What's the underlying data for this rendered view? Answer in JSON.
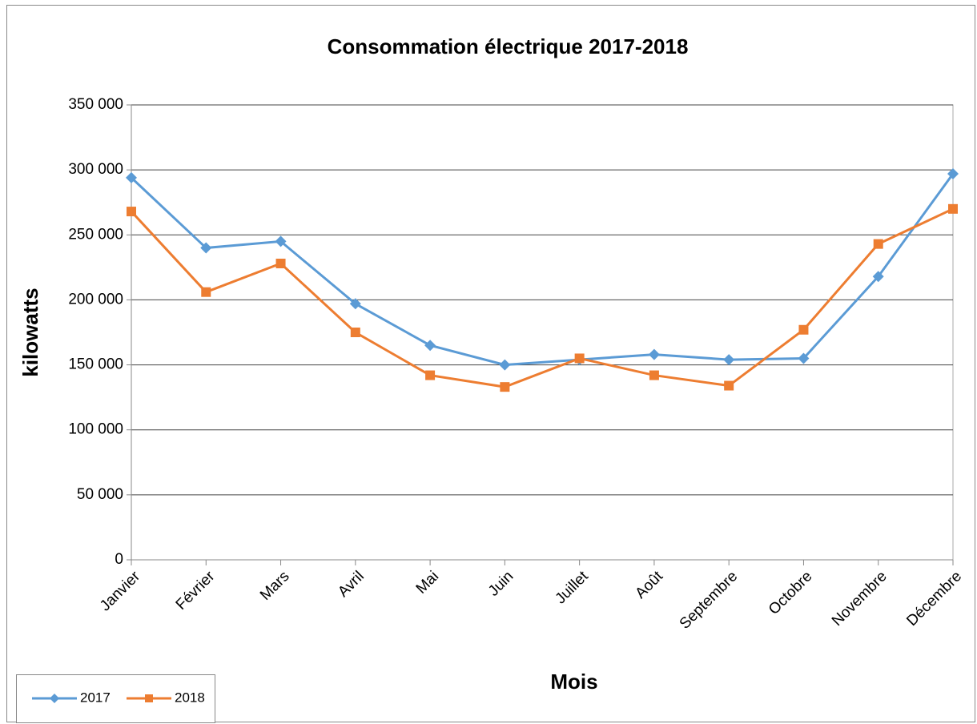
{
  "chart_data": {
    "type": "line",
    "title": "Consommation électrique 2017-2018",
    "x_label": "Mois",
    "y_label": "kilowatts",
    "categories": [
      "Janvier",
      "Février",
      "Mars",
      "Avril",
      "Mai",
      "Juin",
      "Juillet",
      "Août",
      "Septembre",
      "Octobre",
      "Novembre",
      "Décembre"
    ],
    "series": [
      {
        "name": "2017",
        "color": "#5b9bd5",
        "marker": "diamond",
        "values": [
          294000,
          240000,
          245000,
          197000,
          165000,
          150000,
          154000,
          158000,
          154000,
          155000,
          218000,
          297000
        ]
      },
      {
        "name": "2018",
        "color": "#ed7d31",
        "marker": "square",
        "values": [
          268000,
          206000,
          228000,
          175000,
          142000,
          133000,
          155000,
          142000,
          134000,
          177000,
          243000,
          270000
        ]
      }
    ],
    "ylim": [
      0,
      350000
    ],
    "yticks": [
      0,
      {
        "value": 50000,
        "label": "50 000"
      },
      {
        "value": 100000,
        "label": "100 000"
      },
      {
        "value": 150000,
        "label": "150 000"
      },
      {
        "value": 200000,
        "label": "200 000"
      },
      {
        "value": 250000,
        "label": "250 000"
      },
      {
        "value": 300000,
        "label": "300 000"
      },
      {
        "value": 350000,
        "label": "350 000"
      }
    ],
    "grid": true,
    "legend": "bottom-left"
  }
}
